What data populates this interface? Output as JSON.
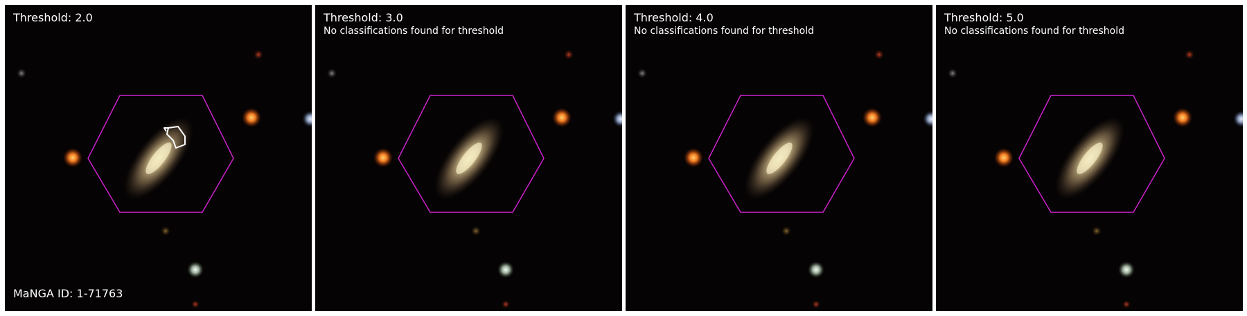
{
  "panels": [
    {
      "title": "Threshold: 2.0",
      "note": "",
      "has_classification": true
    },
    {
      "title": "Threshold: 3.0",
      "note": "No classifications found for threshold",
      "has_classification": false
    },
    {
      "title": "Threshold: 4.0",
      "note": "No classifications found for threshold",
      "has_classification": false
    },
    {
      "title": "Threshold: 5.0",
      "note": "No classifications found for threshold",
      "has_classification": false
    }
  ],
  "manga_id": "MaNGA ID: 1-71763",
  "colors": {
    "hexagon": "#cc22cc",
    "classification_outline": "#ffffff",
    "sky": "#050303",
    "galaxy_core": "#f2e8b0",
    "galaxy_halo": "#a08a60"
  },
  "objects": {
    "galaxy": "edge-on disc galaxy, tilted",
    "stars": [
      "orange-star",
      "orange-star",
      "blue-white-star",
      "white-star",
      "faint-red-star",
      "faint-grey-star",
      "faint-amber-star"
    ]
  }
}
